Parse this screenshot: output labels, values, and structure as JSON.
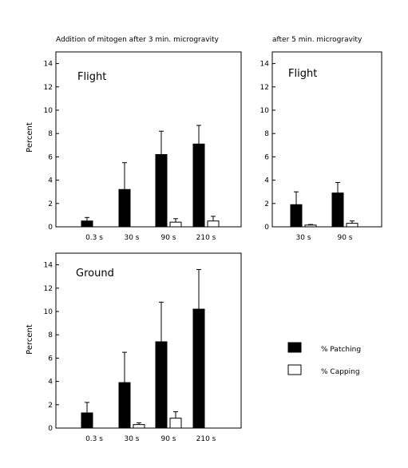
{
  "titles": {
    "left": "Addition of mitogen after 3 min. microgravity",
    "right": "after 5 min. microgravity"
  },
  "legend": [
    {
      "label": "% Patching",
      "fill": "#000000"
    },
    {
      "label": "% Capping",
      "fill": "#ffffff"
    }
  ],
  "colors": {
    "patching": "#000000",
    "capping": "#ffffff",
    "stroke": "#000000"
  },
  "chart_data": [
    {
      "type": "bar",
      "title": "Addition of mitogen after 3 min. microgravity",
      "panel_label": "Flight",
      "categories": [
        "0.3 s",
        "30 s",
        "90 s",
        "210 s"
      ],
      "ylabel": "Percent",
      "ylim": [
        0,
        15
      ],
      "yticks": [
        0,
        2,
        4,
        6,
        8,
        10,
        12,
        14
      ],
      "error_bars": "upper only",
      "series": [
        {
          "name": "% Patching",
          "values": [
            0.5,
            3.2,
            6.2,
            7.1
          ],
          "errors": [
            0.3,
            2.3,
            2.0,
            1.6
          ]
        },
        {
          "name": "% Capping",
          "values": [
            0.0,
            0.0,
            0.4,
            0.5
          ],
          "errors": [
            0.0,
            0.0,
            0.3,
            0.4
          ]
        }
      ]
    },
    {
      "type": "bar",
      "title": "after 5 min. microgravity",
      "panel_label": "Flight",
      "categories": [
        "30 s",
        "90 s"
      ],
      "ylim": [
        0,
        15
      ],
      "yticks": [
        0,
        2,
        4,
        6,
        8,
        10,
        12,
        14
      ],
      "error_bars": "upper only",
      "series": [
        {
          "name": "% Patching",
          "values": [
            1.9,
            2.9
          ],
          "errors": [
            1.1,
            0.9
          ]
        },
        {
          "name": "% Capping",
          "values": [
            0.15,
            0.3
          ],
          "errors": [
            0.05,
            0.2
          ]
        }
      ]
    },
    {
      "type": "bar",
      "panel_label": "Ground",
      "categories": [
        "0.3 s",
        "30 s",
        "90 s",
        "210 s"
      ],
      "ylabel": "Percent",
      "ylim": [
        0,
        15
      ],
      "yticks": [
        0,
        2,
        4,
        6,
        8,
        10,
        12,
        14
      ],
      "error_bars": "upper only",
      "series": [
        {
          "name": "% Patching",
          "values": [
            1.3,
            3.9,
            7.4,
            10.2
          ],
          "errors": [
            0.9,
            2.6,
            3.4,
            3.4
          ]
        },
        {
          "name": "% Capping",
          "values": [
            0.0,
            0.3,
            0.85,
            0.0
          ],
          "errors": [
            0.0,
            0.15,
            0.55,
            0.0
          ]
        }
      ]
    }
  ]
}
